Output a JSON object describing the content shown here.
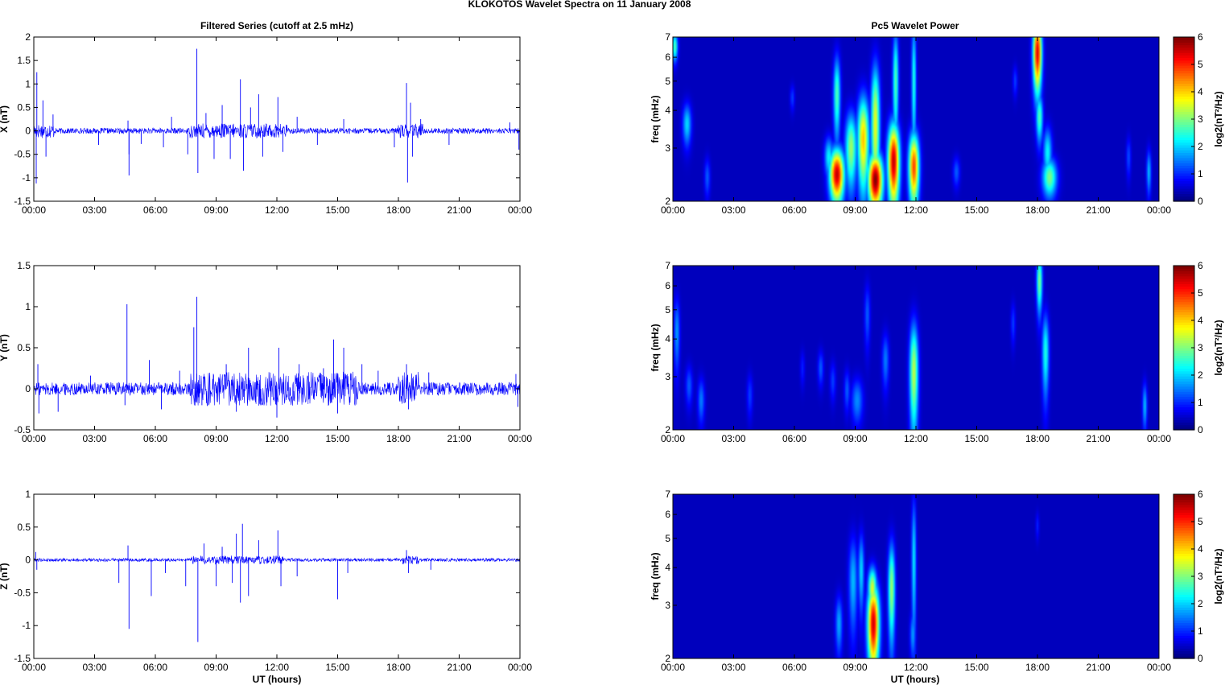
{
  "figure": {
    "suptitle": "KLOKOTOS Wavelet Spectra on 11 January   2008",
    "left_title": "Filtered Series (cutoff at 2.5 mHz)",
    "right_title": "Pc5 Wavelet Power",
    "xlabel": "UT (hours)"
  },
  "colors": {
    "line": "#0000ff",
    "spectrum_background": "#00008f",
    "colormap": "jet"
  },
  "chart_data": [
    {
      "type": "line",
      "name": "X (nT)",
      "ylabel": "X (nT)",
      "ylim": [
        -1.5,
        2
      ],
      "yticks": [
        2,
        1.5,
        1,
        0.5,
        0,
        -0.5,
        -1,
        -1.5
      ],
      "xlim_hours": [
        0,
        24
      ],
      "xticks": [
        "00:00",
        "03:00",
        "06:00",
        "09:00",
        "12:00",
        "15:00",
        "18:00",
        "21:00",
        "00:00"
      ],
      "noise_amplitude": 0.06,
      "spikes": [
        {
          "t": 0.15,
          "v": 1.25
        },
        {
          "t": 0.12,
          "v": -1.12
        },
        {
          "t": 0.45,
          "v": 0.65
        },
        {
          "t": 0.6,
          "v": -0.55
        },
        {
          "t": 0.95,
          "v": 0.35
        },
        {
          "t": 3.2,
          "v": -0.3
        },
        {
          "t": 4.7,
          "v": -0.5
        },
        {
          "t": 4.65,
          "v": 0.22
        },
        {
          "t": 4.7,
          "v": -0.95
        },
        {
          "t": 5.3,
          "v": -0.28
        },
        {
          "t": 6.4,
          "v": -0.35
        },
        {
          "t": 6.8,
          "v": 0.3
        },
        {
          "t": 7.6,
          "v": -0.5
        },
        {
          "t": 8.05,
          "v": 1.75
        },
        {
          "t": 8.1,
          "v": -0.9
        },
        {
          "t": 8.5,
          "v": 0.38
        },
        {
          "t": 8.9,
          "v": -0.6
        },
        {
          "t": 9.3,
          "v": 0.55
        },
        {
          "t": 9.7,
          "v": -0.6
        },
        {
          "t": 10.2,
          "v": 1.1
        },
        {
          "t": 10.35,
          "v": -0.85
        },
        {
          "t": 10.7,
          "v": 0.5
        },
        {
          "t": 11.1,
          "v": 0.78
        },
        {
          "t": 11.3,
          "v": -0.55
        },
        {
          "t": 12.05,
          "v": 0.72
        },
        {
          "t": 12.3,
          "v": -0.45
        },
        {
          "t": 13.0,
          "v": 0.3
        },
        {
          "t": 14.0,
          "v": -0.3
        },
        {
          "t": 15.3,
          "v": 0.25
        },
        {
          "t": 17.8,
          "v": -0.35
        },
        {
          "t": 18.4,
          "v": 1.02
        },
        {
          "t": 18.45,
          "v": -1.1
        },
        {
          "t": 18.6,
          "v": 0.6
        },
        {
          "t": 18.7,
          "v": -0.55
        },
        {
          "t": 19.1,
          "v": 0.25
        },
        {
          "t": 20.5,
          "v": -0.3
        },
        {
          "t": 23.5,
          "v": 0.18
        },
        {
          "t": 23.95,
          "v": -0.4
        }
      ],
      "active_intervals_hours": [
        [
          7.7,
          12.5
        ],
        [
          18.0,
          19.2
        ],
        [
          0.0,
          1.0
        ]
      ]
    },
    {
      "type": "line",
      "name": "Y (nT)",
      "ylabel": "Y (nT)",
      "ylim": [
        -0.5,
        1.5
      ],
      "yticks": [
        1.5,
        1,
        0.5,
        0,
        -0.5
      ],
      "xlim_hours": [
        0,
        24
      ],
      "xticks": [
        "00:00",
        "03:00",
        "06:00",
        "09:00",
        "12:00",
        "15:00",
        "18:00",
        "21:00",
        "00:00"
      ],
      "noise_amplitude": 0.08,
      "spikes": [
        {
          "t": 0.2,
          "v": 0.3
        },
        {
          "t": 0.25,
          "v": -0.3
        },
        {
          "t": 1.2,
          "v": -0.28
        },
        {
          "t": 2.8,
          "v": 0.16
        },
        {
          "t": 4.5,
          "v": -0.2
        },
        {
          "t": 4.6,
          "v": 1.03
        },
        {
          "t": 5.7,
          "v": 0.35
        },
        {
          "t": 6.3,
          "v": -0.25
        },
        {
          "t": 7.2,
          "v": 0.22
        },
        {
          "t": 7.9,
          "v": 0.75
        },
        {
          "t": 8.05,
          "v": 1.12
        },
        {
          "t": 8.3,
          "v": -0.2
        },
        {
          "t": 9.5,
          "v": 0.3
        },
        {
          "t": 10.0,
          "v": -0.28
        },
        {
          "t": 10.6,
          "v": 0.5
        },
        {
          "t": 11.2,
          "v": -0.2
        },
        {
          "t": 12.1,
          "v": 0.5
        },
        {
          "t": 12.0,
          "v": -0.35
        },
        {
          "t": 13.1,
          "v": 0.3
        },
        {
          "t": 14.3,
          "v": 0.25
        },
        {
          "t": 14.8,
          "v": 0.6
        },
        {
          "t": 15.3,
          "v": 0.5
        },
        {
          "t": 15.0,
          "v": -0.3
        },
        {
          "t": 16.2,
          "v": 0.3
        },
        {
          "t": 17.0,
          "v": 0.22
        },
        {
          "t": 18.4,
          "v": 0.3
        },
        {
          "t": 18.5,
          "v": -0.25
        },
        {
          "t": 19.5,
          "v": 0.2
        },
        {
          "t": 23.8,
          "v": 0.18
        },
        {
          "t": 23.9,
          "v": -0.22
        }
      ],
      "active_intervals_hours": [
        [
          7.7,
          16.0
        ],
        [
          18.0,
          19.0
        ]
      ]
    },
    {
      "type": "line",
      "name": "Z (nT)",
      "ylabel": "Z (nT)",
      "ylim": [
        -1.5,
        1
      ],
      "yticks": [
        1,
        0.5,
        0,
        -0.5,
        -1,
        -1.5
      ],
      "xlim_hours": [
        0,
        24
      ],
      "xticks": [
        "00:00",
        "03:00",
        "06:00",
        "09:00",
        "12:00",
        "15:00",
        "18:00",
        "21:00",
        "00:00"
      ],
      "noise_amplitude": 0.025,
      "spikes": [
        {
          "t": 0.1,
          "v": 0.12
        },
        {
          "t": 0.15,
          "v": -0.15
        },
        {
          "t": 4.2,
          "v": -0.35
        },
        {
          "t": 4.7,
          "v": -1.05
        },
        {
          "t": 4.65,
          "v": 0.22
        },
        {
          "t": 5.8,
          "v": -0.55
        },
        {
          "t": 6.5,
          "v": -0.2
        },
        {
          "t": 7.5,
          "v": -0.4
        },
        {
          "t": 8.1,
          "v": -1.25
        },
        {
          "t": 8.4,
          "v": 0.25
        },
        {
          "t": 9.0,
          "v": -0.4
        },
        {
          "t": 9.3,
          "v": 0.2
        },
        {
          "t": 9.8,
          "v": -0.35
        },
        {
          "t": 10.0,
          "v": 0.4
        },
        {
          "t": 10.3,
          "v": 0.55
        },
        {
          "t": 10.2,
          "v": -0.65
        },
        {
          "t": 10.6,
          "v": -0.55
        },
        {
          "t": 11.1,
          "v": 0.3
        },
        {
          "t": 12.05,
          "v": 0.45
        },
        {
          "t": 12.2,
          "v": -0.4
        },
        {
          "t": 13.0,
          "v": -0.25
        },
        {
          "t": 15.0,
          "v": -0.6
        },
        {
          "t": 15.5,
          "v": -0.2
        },
        {
          "t": 18.4,
          "v": 0.15
        },
        {
          "t": 18.5,
          "v": -0.2
        },
        {
          "t": 19.6,
          "v": -0.15
        }
      ],
      "active_intervals_hours": [
        [
          7.8,
          12.3
        ],
        [
          18.2,
          19.0
        ]
      ]
    },
    {
      "type": "heatmap",
      "name": "Pc5 Wavelet Power X",
      "ylabel": "freq (mHz)",
      "y_scale": "log",
      "ylim": [
        2,
        7
      ],
      "yticks": [
        2,
        3,
        4,
        5,
        6,
        7
      ],
      "xlim_hours": [
        0,
        24
      ],
      "xticks": [
        "00:00",
        "03:00",
        "06:00",
        "09:00",
        "12:00",
        "15:00",
        "18:00",
        "21:00",
        "00:00"
      ],
      "colorbar_label": "log2(nT²/Hz)",
      "clim": [
        0,
        6
      ],
      "colorbar_ticks": [
        0,
        1,
        2,
        3,
        4,
        5,
        6
      ],
      "blobs": [
        {
          "t": 0.1,
          "f": 6.5,
          "power": 2.5,
          "dt": 0.1,
          "df": 0.5
        },
        {
          "t": 0.7,
          "f": 3.6,
          "power": 1.8,
          "dt": 0.15,
          "df": 0.4
        },
        {
          "t": 1.7,
          "f": 2.4,
          "power": 1.0,
          "dt": 0.1,
          "df": 0.25
        },
        {
          "t": 5.9,
          "f": 4.4,
          "power": 0.8,
          "dt": 0.08,
          "df": 0.3
        },
        {
          "t": 7.7,
          "f": 2.8,
          "power": 2.0,
          "dt": 0.15,
          "df": 0.3
        },
        {
          "t": 8.1,
          "f": 2.45,
          "power": 5.6,
          "dt": 0.25,
          "df": 0.35
        },
        {
          "t": 8.1,
          "f": 4.5,
          "power": 2.5,
          "dt": 0.12,
          "df": 1.0
        },
        {
          "t": 8.8,
          "f": 3.0,
          "power": 3.0,
          "dt": 0.2,
          "df": 0.6
        },
        {
          "t": 9.4,
          "f": 3.2,
          "power": 4.0,
          "dt": 0.2,
          "df": 0.8
        },
        {
          "t": 10.0,
          "f": 2.35,
          "power": 6.0,
          "dt": 0.25,
          "df": 0.35
        },
        {
          "t": 10.0,
          "f": 3.6,
          "power": 3.5,
          "dt": 0.15,
          "df": 1.3
        },
        {
          "t": 10.9,
          "f": 2.7,
          "power": 5.6,
          "dt": 0.2,
          "df": 0.6
        },
        {
          "t": 11.0,
          "f": 5.0,
          "power": 2.5,
          "dt": 0.1,
          "df": 1.5
        },
        {
          "t": 11.9,
          "f": 2.6,
          "power": 4.8,
          "dt": 0.18,
          "df": 0.5
        },
        {
          "t": 11.9,
          "f": 5.0,
          "power": 2.2,
          "dt": 0.08,
          "df": 1.8
        },
        {
          "t": 14.0,
          "f": 2.5,
          "power": 1.0,
          "dt": 0.12,
          "df": 0.2
        },
        {
          "t": 16.9,
          "f": 5.0,
          "power": 0.8,
          "dt": 0.08,
          "df": 0.4
        },
        {
          "t": 18.0,
          "f": 6.2,
          "power": 5.4,
          "dt": 0.15,
          "df": 1.2
        },
        {
          "t": 18.1,
          "f": 3.8,
          "power": 2.5,
          "dt": 0.12,
          "df": 0.5
        },
        {
          "t": 18.6,
          "f": 2.4,
          "power": 2.8,
          "dt": 0.25,
          "df": 0.25
        },
        {
          "t": 18.5,
          "f": 2.9,
          "power": 2.0,
          "dt": 0.15,
          "df": 0.4
        },
        {
          "t": 22.5,
          "f": 2.8,
          "power": 0.9,
          "dt": 0.08,
          "df": 0.3
        },
        {
          "t": 23.5,
          "f": 2.5,
          "power": 1.6,
          "dt": 0.08,
          "df": 0.3
        }
      ]
    },
    {
      "type": "heatmap",
      "name": "Pc5 Wavelet Power Y",
      "ylabel": "freq (mHz)",
      "y_scale": "log",
      "ylim": [
        2,
        7
      ],
      "yticks": [
        2,
        3,
        4,
        5,
        6,
        7
      ],
      "xlim_hours": [
        0,
        24
      ],
      "xticks": [
        "00:00",
        "03:00",
        "06:00",
        "09:00",
        "12:00",
        "15:00",
        "18:00",
        "21:00",
        "00:00"
      ],
      "colorbar_label": "log2(nT²/Hz)",
      "clim": [
        0,
        6
      ],
      "colorbar_ticks": [
        0,
        1,
        2,
        3,
        4,
        5,
        6
      ],
      "blobs": [
        {
          "t": 0.2,
          "f": 4.2,
          "power": 1.4,
          "dt": 0.1,
          "df": 0.8
        },
        {
          "t": 0.8,
          "f": 2.8,
          "power": 1.0,
          "dt": 0.12,
          "df": 0.3
        },
        {
          "t": 1.4,
          "f": 2.5,
          "power": 1.2,
          "dt": 0.12,
          "df": 0.3
        },
        {
          "t": 3.8,
          "f": 2.6,
          "power": 0.8,
          "dt": 0.1,
          "df": 0.3
        },
        {
          "t": 6.4,
          "f": 3.2,
          "power": 0.6,
          "dt": 0.08,
          "df": 0.3
        },
        {
          "t": 7.3,
          "f": 3.2,
          "power": 1.0,
          "dt": 0.1,
          "df": 0.3
        },
        {
          "t": 7.9,
          "f": 2.9,
          "power": 0.8,
          "dt": 0.1,
          "df": 0.3
        },
        {
          "t": 8.6,
          "f": 2.7,
          "power": 1.0,
          "dt": 0.1,
          "df": 0.3
        },
        {
          "t": 9.1,
          "f": 2.5,
          "power": 1.3,
          "dt": 0.2,
          "df": 0.3
        },
        {
          "t": 9.6,
          "f": 4.8,
          "power": 1.0,
          "dt": 0.1,
          "df": 0.8
        },
        {
          "t": 10.5,
          "f": 3.4,
          "power": 1.2,
          "dt": 0.12,
          "df": 0.5
        },
        {
          "t": 11.9,
          "f": 3.1,
          "power": 3.2,
          "dt": 0.15,
          "df": 0.9
        },
        {
          "t": 16.8,
          "f": 4.5,
          "power": 0.8,
          "dt": 0.08,
          "df": 0.5
        },
        {
          "t": 18.1,
          "f": 6.2,
          "power": 2.8,
          "dt": 0.1,
          "df": 1.0
        },
        {
          "t": 18.4,
          "f": 3.6,
          "power": 2.2,
          "dt": 0.12,
          "df": 0.8
        },
        {
          "t": 23.3,
          "f": 2.4,
          "power": 1.6,
          "dt": 0.08,
          "df": 0.3
        }
      ]
    },
    {
      "type": "heatmap",
      "name": "Pc5 Wavelet Power Z",
      "ylabel": "freq (mHz)",
      "y_scale": "log",
      "ylim": [
        2,
        7
      ],
      "yticks": [
        2,
        3,
        4,
        5,
        6,
        7
      ],
      "xlim_hours": [
        0,
        24
      ],
      "xticks": [
        "00:00",
        "03:00",
        "06:00",
        "09:00",
        "12:00",
        "15:00",
        "18:00",
        "21:00",
        "00:00"
      ],
      "colorbar_label": "log2(nT²/Hz)",
      "clim": [
        0,
        6
      ],
      "colorbar_ticks": [
        0,
        1,
        2,
        3,
        4,
        5,
        6
      ],
      "blobs": [
        {
          "t": 8.2,
          "f": 2.6,
          "power": 1.5,
          "dt": 0.12,
          "df": 0.4
        },
        {
          "t": 8.9,
          "f": 3.6,
          "power": 1.6,
          "dt": 0.15,
          "df": 0.9
        },
        {
          "t": 9.3,
          "f": 3.9,
          "power": 1.8,
          "dt": 0.1,
          "df": 0.8
        },
        {
          "t": 9.9,
          "f": 2.6,
          "power": 5.5,
          "dt": 0.2,
          "df": 0.6
        },
        {
          "t": 9.85,
          "f": 3.4,
          "power": 3.4,
          "dt": 0.15,
          "df": 0.4
        },
        {
          "t": 10.8,
          "f": 3.4,
          "power": 3.0,
          "dt": 0.12,
          "df": 0.9
        },
        {
          "t": 11.9,
          "f": 4.2,
          "power": 1.9,
          "dt": 0.08,
          "df": 1.6
        },
        {
          "t": 11.85,
          "f": 2.4,
          "power": 1.4,
          "dt": 0.1,
          "df": 0.3
        },
        {
          "t": 18.0,
          "f": 5.5,
          "power": 0.6,
          "dt": 0.06,
          "df": 0.4
        }
      ]
    }
  ]
}
